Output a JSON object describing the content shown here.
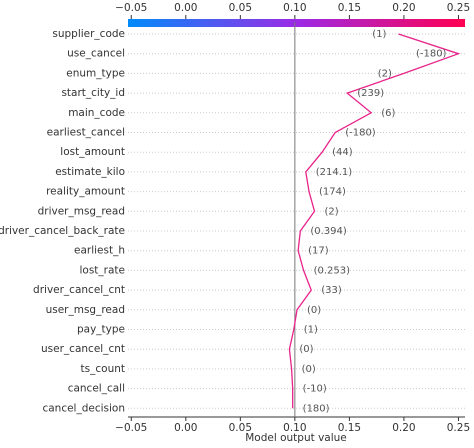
{
  "chart_data": {
    "type": "decision",
    "xlabel": "Model output value",
    "xlim": [
      -0.053,
      0.256
    ],
    "xticks": [
      {
        "value": -0.05,
        "label": "−0.05"
      },
      {
        "value": 0,
        "label": "0.00"
      },
      {
        "value": 0.05,
        "label": "0.05"
      },
      {
        "value": 0.1,
        "label": "0.10"
      },
      {
        "value": 0.15,
        "label": "0.15"
      },
      {
        "value": 0.2,
        "label": "0.20"
      },
      {
        "value": 0.25,
        "label": "0.25"
      }
    ],
    "base_value": 0.1,
    "color": "#e8238a",
    "grid": true,
    "features": [
      "supplier_code",
      "use_cancel",
      "enum_type",
      "start_city_id",
      "main_code",
      "earliest_cancel",
      "lost_amount",
      "estimate_kilo",
      "reality_amount",
      "driver_msg_read",
      "driver_cancel_back_rate",
      "earliest_h",
      "lost_rate",
      "driver_cancel_cnt",
      "user_msg_read",
      "pay_type",
      "user_cancel_cnt",
      "ts_count",
      "cancel_call",
      "cancel_decision"
    ],
    "values": [
      0.195,
      0.25,
      0.2,
      0.148,
      0.17,
      0.137,
      0.125,
      0.11,
      0.113,
      0.118,
      0.105,
      0.103,
      0.108,
      0.115,
      0.102,
      0.099,
      0.095,
      0.097,
      0.098,
      0.098
    ],
    "feature_values": [
      "(1)",
      "(-180)",
      "(2)",
      "(239)",
      "(6)",
      "(-180)",
      "(44)",
      "(214.1)",
      "(174)",
      "(2)",
      "(0.394)",
      "(17)",
      "(0.253)",
      "(33)",
      "(0)",
      "(1)",
      "(0)",
      "(0)",
      "(-10)",
      "(180)"
    ]
  }
}
